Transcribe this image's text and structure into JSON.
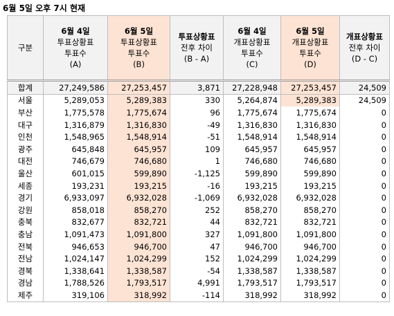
{
  "title": "6월 5일 오후 7시 현재",
  "table": {
    "header": [
      [
        "구분"
      ],
      [
        "6월 4일",
        "투표상황표",
        "투표수",
        "(A)"
      ],
      [
        "6월 5일",
        "투표상황표",
        "투표수",
        "(B)"
      ],
      [
        "투표상황표",
        "전후 차이",
        "(B - A)"
      ],
      [
        "6월 4일",
        "개표상황표",
        "투표수",
        "(C)"
      ],
      [
        "6월 5일",
        "개표상황표",
        "투표수",
        "(D)"
      ],
      [
        "개표상황표",
        "전후 차이",
        "(D - C)"
      ]
    ],
    "rows": [
      [
        "합계",
        "27,249,586",
        "27,253,457",
        "3,871",
        "27,228,948",
        "27,253,457",
        "24,509"
      ],
      [
        "서울",
        "5,289,053",
        "5,289,383",
        "330",
        "5,264,874",
        "5,289,383",
        "24,509"
      ],
      [
        "부산",
        "1,775,578",
        "1,775,674",
        "96",
        "1,775,674",
        "1,775,674",
        "0"
      ],
      [
        "대구",
        "1,316,879",
        "1,316,830",
        "-49",
        "1,316,830",
        "1,316,830",
        "0"
      ],
      [
        "인천",
        "1,548,965",
        "1,548,914",
        "-51",
        "1,548,914",
        "1,548,914",
        "0"
      ],
      [
        "광주",
        "645,848",
        "645,957",
        "109",
        "645,957",
        "645,957",
        "0"
      ],
      [
        "대전",
        "746,679",
        "746,680",
        "1",
        "746,680",
        "746,680",
        "0"
      ],
      [
        "울산",
        "601,015",
        "599,890",
        "-1,125",
        "599,890",
        "599,890",
        "0"
      ],
      [
        "세종",
        "193,231",
        "193,215",
        "-16",
        "193,215",
        "193,215",
        "0"
      ],
      [
        "경기",
        "6,933,097",
        "6,932,028",
        "-1,069",
        "6,932,028",
        "6,932,028",
        "0"
      ],
      [
        "강원",
        "858,018",
        "858,270",
        "252",
        "858,270",
        "858,270",
        "0"
      ],
      [
        "충북",
        "832,677",
        "832,721",
        "44",
        "832,721",
        "832,721",
        "0"
      ],
      [
        "충남",
        "1,091,473",
        "1,091,800",
        "327",
        "1,091,800",
        "1,091,800",
        "0"
      ],
      [
        "전북",
        "946,653",
        "946,700",
        "47",
        "946,700",
        "946,700",
        "0"
      ],
      [
        "전남",
        "1,024,147",
        "1,024,299",
        "152",
        "1,024,299",
        "1,024,299",
        "0"
      ],
      [
        "경북",
        "1,338,641",
        "1,338,587",
        "-54",
        "1,338,587",
        "1,338,587",
        "0"
      ],
      [
        "경남",
        "1,788,526",
        "1,793,517",
        "4,991",
        "1,793,517",
        "1,793,517",
        "0"
      ],
      [
        "제주",
        "319,106",
        "318,992",
        "-114",
        "318,992",
        "318,992",
        "0"
      ]
    ]
  }
}
